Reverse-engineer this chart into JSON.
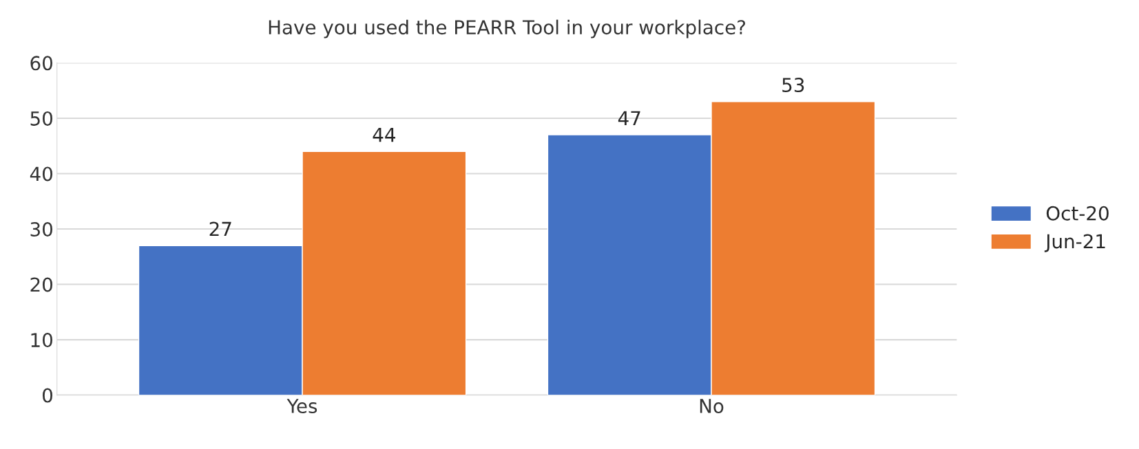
{
  "chart_data": {
    "type": "bar",
    "title": "Have you used the PEARR Tool in your workplace?",
    "categories": [
      "Yes",
      "No"
    ],
    "series": [
      {
        "name": "Oct-20",
        "color": "#4472c4",
        "values": [
          27,
          47
        ]
      },
      {
        "name": "Jun-21",
        "color": "#ed7d31",
        "values": [
          44,
          53
        ]
      }
    ],
    "ylim": [
      0,
      60
    ],
    "yticks": [
      0,
      10,
      20,
      30,
      40,
      50,
      60
    ],
    "grid": "y",
    "legend": "right",
    "data_labels": true
  }
}
